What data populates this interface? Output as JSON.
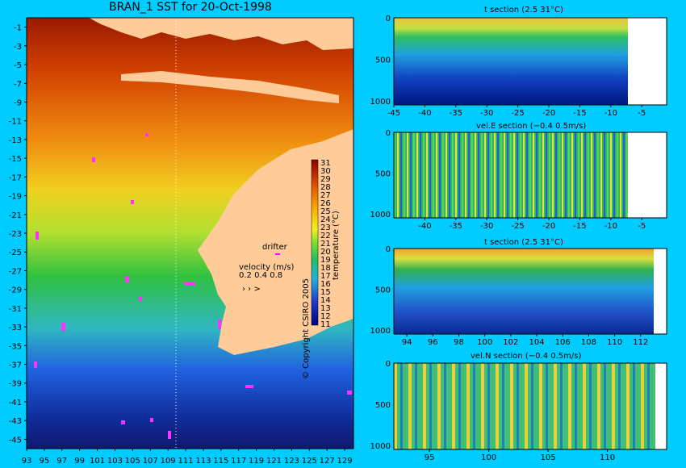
{
  "title": "BRAN_1 SST for 20-Oct-1998",
  "copyright": "© Copyright CSIRO 2005",
  "colors": {
    "background": "#00ccff",
    "land": "#ffcc99"
  },
  "chart_data": [
    {
      "type": "heatmap",
      "name": "sst-map",
      "title": "BRAN_1 SST for 20-Oct-1998",
      "x_ticks": [
        "93",
        "95",
        "97",
        "99",
        "101",
        "103",
        "105",
        "107",
        "109",
        "111",
        "113",
        "115",
        "117",
        "119",
        "121",
        "123",
        "125",
        "127",
        "129"
      ],
      "y_ticks": [
        "-1",
        "-3",
        "-5",
        "-7",
        "-9",
        "-11",
        "-13",
        "-15",
        "-17",
        "-19",
        "-21",
        "-23",
        "-25",
        "-27",
        "-29",
        "-31",
        "-33",
        "-35",
        "-37",
        "-39",
        "-41",
        "-43",
        "-45"
      ],
      "xlim": [
        93,
        130
      ],
      "ylim": [
        -46,
        0
      ],
      "colorbar": {
        "label": "temperature (°C)",
        "ticks": [
          "31",
          "30",
          "29",
          "28",
          "27",
          "26",
          "25",
          "24",
          "23",
          "22",
          "21",
          "20",
          "19",
          "18",
          "17",
          "16",
          "15",
          "14",
          "13",
          "12",
          "11"
        ]
      },
      "drifter_label": "drifter",
      "velocity_label": "velocity (m/s)",
      "velocity_values": [
        "0.2",
        "0.4",
        "0.8"
      ]
    },
    {
      "type": "heatmap",
      "name": "t-section-lat",
      "title": "t section (2.5       31°C)",
      "x_ticks": [
        "-45",
        "-40",
        "-35",
        "-30",
        "-25",
        "-20",
        "-15",
        "-10",
        "-5"
      ],
      "y_ticks": [
        "0",
        "500",
        "1000"
      ],
      "xlim": [
        -45,
        -1
      ]
    },
    {
      "type": "heatmap",
      "name": "vele-section-lat",
      "title": "vel.E section (−0.4       0.5m/s)",
      "x_ticks": [
        "-40",
        "-35",
        "-30",
        "-25",
        "-20",
        "-15",
        "-10",
        "-5"
      ],
      "y_ticks": [
        "0",
        "500",
        "1000"
      ],
      "xlim": [
        -45,
        -1
      ]
    },
    {
      "type": "heatmap",
      "name": "t-section-lon",
      "title": "t section (2.5       31°C)",
      "x_ticks": [
        "94",
        "96",
        "98",
        "100",
        "102",
        "104",
        "106",
        "108",
        "110",
        "112"
      ],
      "y_ticks": [
        "0",
        "500",
        "1000"
      ],
      "xlim": [
        93,
        114
      ]
    },
    {
      "type": "heatmap",
      "name": "veln-section-lon",
      "title": "vel.N section (−0.4       0.5m/s)",
      "x_ticks": [
        "95",
        "100",
        "105",
        "110"
      ],
      "y_ticks": [
        "0",
        "500",
        "1000"
      ],
      "xlim": [
        92,
        115
      ]
    }
  ]
}
